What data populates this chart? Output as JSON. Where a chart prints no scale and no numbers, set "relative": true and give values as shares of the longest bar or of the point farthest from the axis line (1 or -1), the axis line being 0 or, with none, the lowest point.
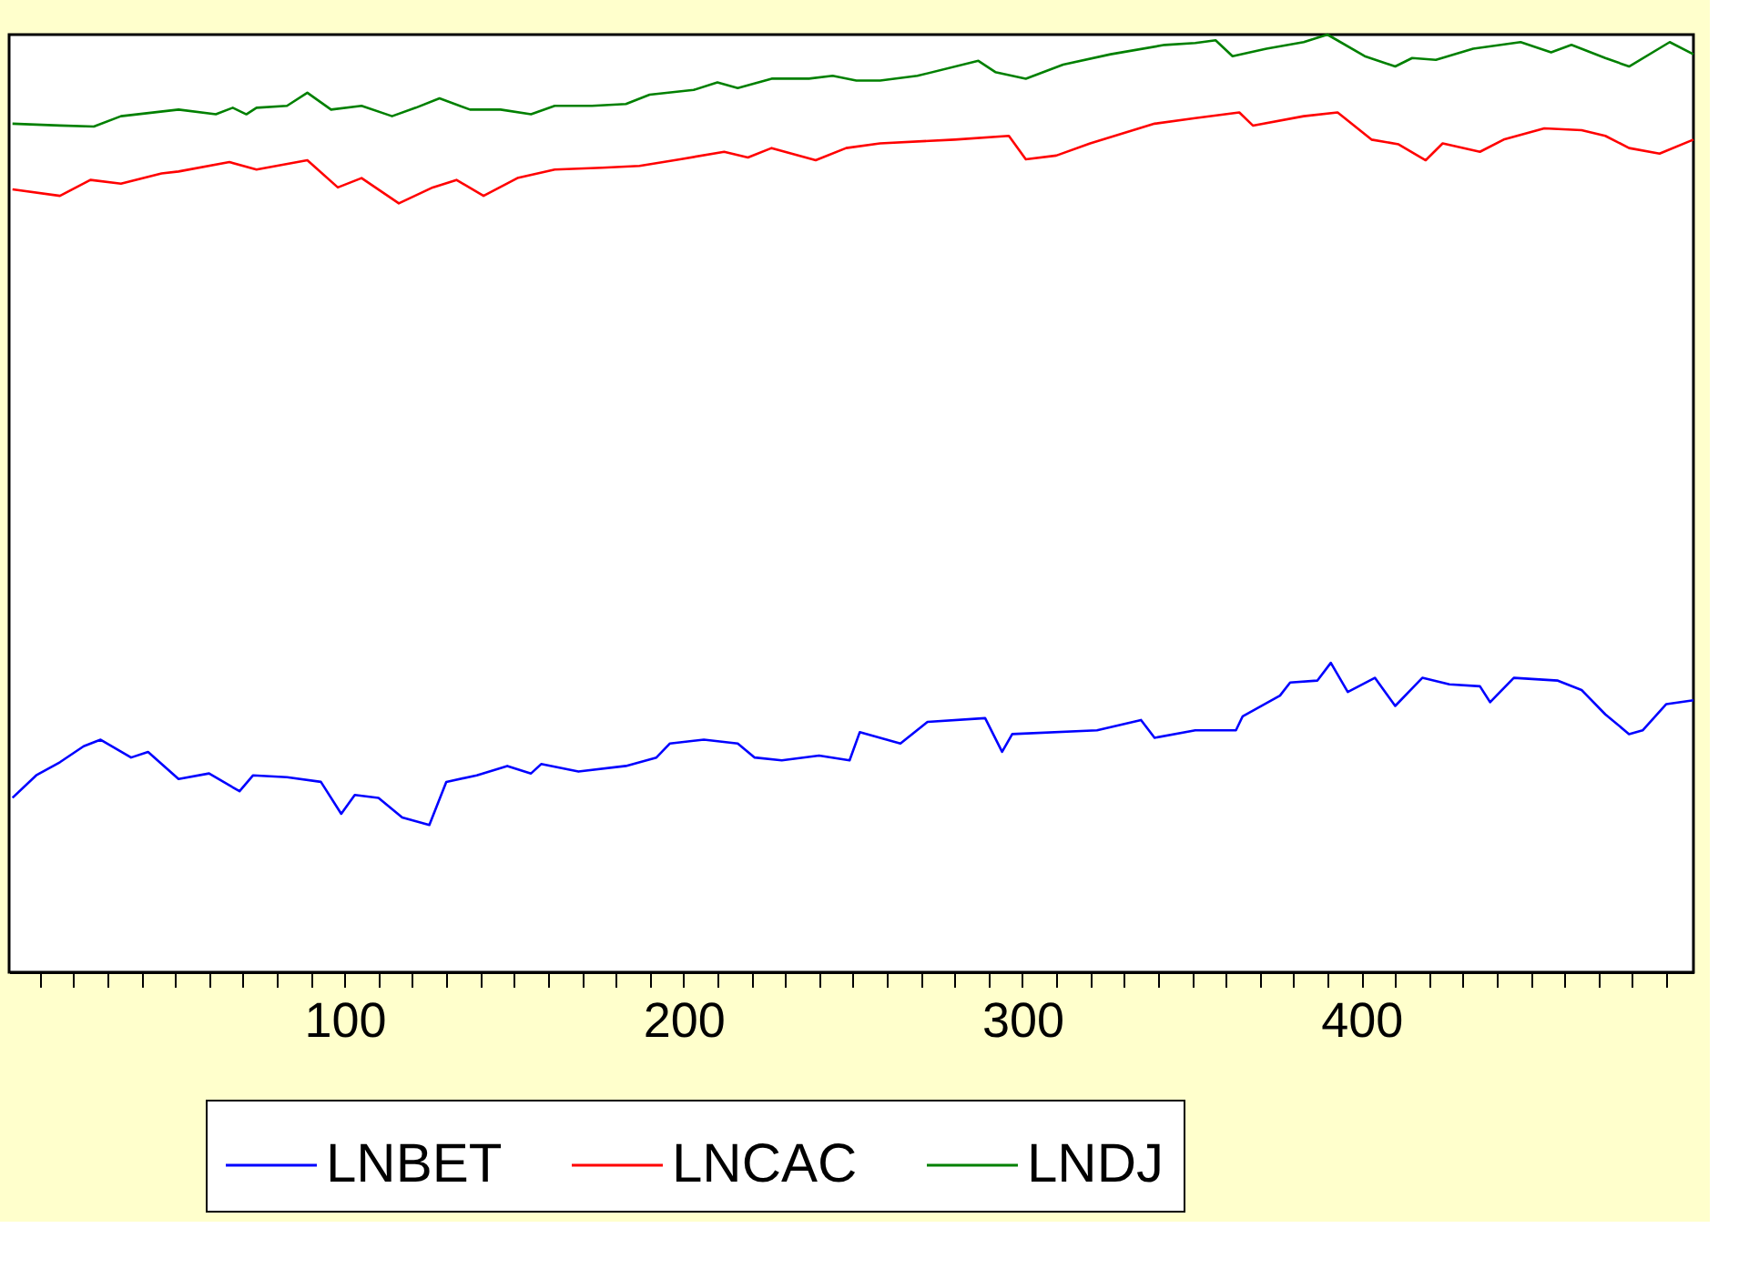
{
  "chart_data": {
    "type": "line",
    "relative": true,
    "legend": "bottom",
    "grid": false,
    "line_style": "solid",
    "marker": "none",
    "xlim": [
      1,
      498
    ],
    "xticks": [
      {
        "value": 10,
        "label": null
      },
      {
        "value": 20,
        "label": null
      },
      {
        "value": 30,
        "label": null
      },
      {
        "value": 40,
        "label": null
      },
      {
        "value": 50,
        "label": null
      },
      {
        "value": 60,
        "label": null
      },
      {
        "value": 70,
        "label": null
      },
      {
        "value": 80,
        "label": null
      },
      {
        "value": 90,
        "label": null
      },
      100,
      {
        "value": 110,
        "label": null
      },
      {
        "value": 120,
        "label": null
      },
      {
        "value": 130,
        "label": null
      },
      {
        "value": 140,
        "label": null
      },
      {
        "value": 150,
        "label": null
      },
      {
        "value": 160,
        "label": null
      },
      {
        "value": 170,
        "label": null
      },
      {
        "value": 180,
        "label": null
      },
      {
        "value": 190,
        "label": null
      },
      200,
      {
        "value": 210,
        "label": null
      },
      {
        "value": 220,
        "label": null
      },
      {
        "value": 230,
        "label": null
      },
      {
        "value": 240,
        "label": null
      },
      {
        "value": 250,
        "label": null
      },
      {
        "value": 260,
        "label": null
      },
      {
        "value": 270,
        "label": null
      },
      {
        "value": 280,
        "label": null
      },
      {
        "value": 290,
        "label": null
      },
      300,
      {
        "value": 310,
        "label": null
      },
      {
        "value": 320,
        "label": null
      },
      {
        "value": 330,
        "label": null
      },
      {
        "value": 340,
        "label": null
      },
      {
        "value": 350,
        "label": null
      },
      {
        "value": 360,
        "label": null
      },
      {
        "value": 370,
        "label": null
      },
      {
        "value": 380,
        "label": null
      },
      {
        "value": 390,
        "label": null
      },
      400,
      {
        "value": 410,
        "label": null
      },
      {
        "value": 420,
        "label": null
      },
      {
        "value": 430,
        "label": null
      },
      {
        "value": 440,
        "label": null
      },
      {
        "value": 450,
        "label": null
      },
      {
        "value": 460,
        "label": null
      },
      {
        "value": 470,
        "label": null
      },
      {
        "value": 480,
        "label": null
      },
      {
        "value": 490,
        "label": null
      }
    ],
    "series": [
      {
        "name": "LNBET",
        "color": "#0000ff",
        "x": [
          2,
          9,
          16,
          23,
          28,
          37,
          42,
          51,
          60,
          69,
          73,
          83,
          93,
          99,
          103,
          110,
          117,
          125,
          130,
          139,
          148,
          155,
          158,
          169,
          183,
          192,
          196,
          206,
          216,
          221,
          229,
          240,
          249,
          252,
          264,
          272,
          289,
          294,
          297,
          322,
          335,
          339,
          351,
          363,
          365,
          376,
          379,
          387,
          391,
          396,
          404,
          410,
          418,
          426,
          435,
          438,
          445,
          458,
          465,
          472,
          479,
          483,
          490,
          498
        ],
        "values": [
          0.186,
          0.21,
          0.224,
          0.241,
          0.248,
          0.229,
          0.235,
          0.206,
          0.212,
          0.193,
          0.21,
          0.208,
          0.203,
          0.169,
          0.189,
          0.186,
          0.165,
          0.157,
          0.203,
          0.21,
          0.22,
          0.212,
          0.222,
          0.214,
          0.22,
          0.229,
          0.244,
          0.248,
          0.244,
          0.229,
          0.226,
          0.231,
          0.226,
          0.256,
          0.244,
          0.267,
          0.271,
          0.235,
          0.254,
          0.258,
          0.269,
          0.25,
          0.258,
          0.258,
          0.273,
          0.295,
          0.309,
          0.311,
          0.33,
          0.299,
          0.314,
          0.284,
          0.314,
          0.307,
          0.305,
          0.288,
          0.314,
          0.311,
          0.301,
          0.275,
          0.254,
          0.258,
          0.286,
          0.29
        ]
      },
      {
        "name": "LNCAC",
        "color": "#ff0000",
        "x": [
          2,
          16,
          25,
          34,
          46,
          51,
          66,
          74,
          89,
          98,
          105,
          116,
          126,
          133,
          141,
          151,
          162,
          176,
          187,
          199,
          212,
          219,
          226,
          239,
          248,
          258,
          280,
          296,
          301,
          310,
          320,
          339,
          351,
          364,
          368,
          383,
          393,
          403,
          411,
          419,
          424,
          435,
          442,
          454,
          465,
          472,
          479,
          488,
          498
        ],
        "values": [
          0.835,
          0.828,
          0.845,
          0.841,
          0.852,
          0.854,
          0.864,
          0.856,
          0.866,
          0.837,
          0.847,
          0.82,
          0.837,
          0.845,
          0.828,
          0.847,
          0.856,
          0.858,
          0.86,
          0.867,
          0.875,
          0.869,
          0.879,
          0.866,
          0.879,
          0.884,
          0.888,
          0.892,
          0.867,
          0.871,
          0.884,
          0.905,
          0.911,
          0.917,
          0.903,
          0.913,
          0.917,
          0.888,
          0.883,
          0.866,
          0.884,
          0.875,
          0.888,
          0.9,
          0.898,
          0.892,
          0.879,
          0.873,
          0.888
        ]
      },
      {
        "name": "LNDJ",
        "color": "#008000",
        "x": [
          2,
          16,
          26,
          34,
          51,
          62,
          67,
          71,
          74,
          83,
          89,
          96,
          105,
          114,
          121,
          128,
          137,
          146,
          155,
          162,
          173,
          183,
          190,
          203,
          210,
          216,
          226,
          237,
          244,
          251,
          258,
          269,
          287,
          292,
          301,
          312,
          326,
          342,
          351,
          357,
          362,
          372,
          383,
          390,
          401,
          410,
          415,
          422,
          433,
          447,
          456,
          462,
          472,
          479,
          491,
          498
        ],
        "values": [
          0.905,
          0.903,
          0.902,
          0.913,
          0.92,
          0.915,
          0.922,
          0.915,
          0.922,
          0.924,
          0.938,
          0.92,
          0.924,
          0.913,
          0.922,
          0.932,
          0.92,
          0.92,
          0.915,
          0.924,
          0.924,
          0.926,
          0.936,
          0.941,
          0.949,
          0.943,
          0.953,
          0.953,
          0.956,
          0.951,
          0.951,
          0.956,
          0.972,
          0.96,
          0.953,
          0.968,
          0.979,
          0.989,
          0.991,
          0.994,
          0.977,
          0.985,
          0.992,
          1,
          0.977,
          0.966,
          0.975,
          0.973,
          0.985,
          0.992,
          0.981,
          0.989,
          0.975,
          0.966,
          0.992,
          0.979
        ]
      }
    ]
  }
}
